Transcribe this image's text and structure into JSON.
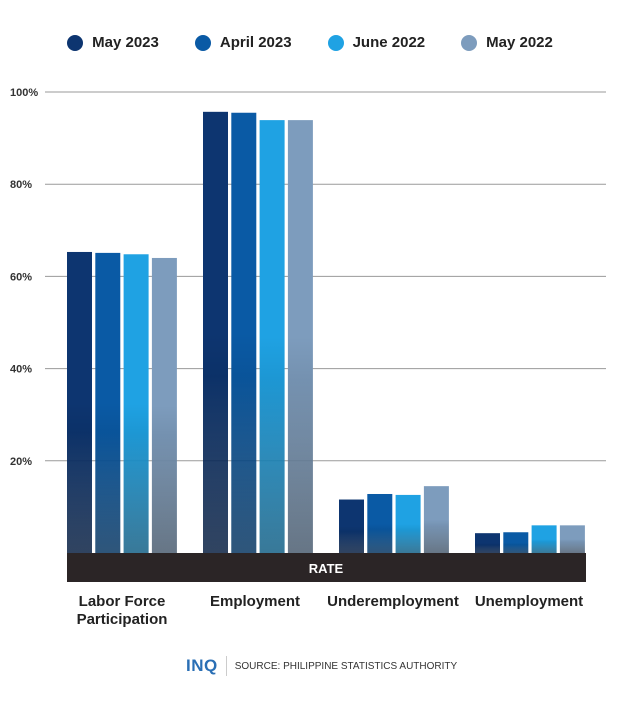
{
  "chart_data": {
    "type": "bar",
    "categories": [
      "Labor Force Participation",
      "Employment",
      "Underemployment",
      "Unemployment"
    ],
    "series": [
      {
        "name": "May 2023",
        "color": "#0d3570",
        "values": [
          65.3,
          95.7,
          11.6,
          4.3
        ]
      },
      {
        "name": "April 2023",
        "color": "#0a5aa5",
        "values": [
          65.1,
          95.5,
          12.8,
          4.5
        ]
      },
      {
        "name": "June 2022",
        "color": "#1fa2e3",
        "values": [
          64.8,
          93.9,
          12.6,
          6.0
        ]
      },
      {
        "name": "May 2022",
        "color": "#7d9cbd",
        "values": [
          64.0,
          93.9,
          14.5,
          6.0
        ]
      }
    ],
    "yticks": [
      "20%",
      "40%",
      "60%",
      "80%",
      "100%"
    ],
    "ytick_values": [
      20,
      40,
      60,
      80,
      100
    ],
    "ylim": [
      0,
      100
    ],
    "xlabel": "RATE",
    "grid": true,
    "legend": "top"
  },
  "footer": {
    "logo": "INQ",
    "source": "SOURCE: PHILIPPINE STATISTICS AUTHORITY"
  }
}
